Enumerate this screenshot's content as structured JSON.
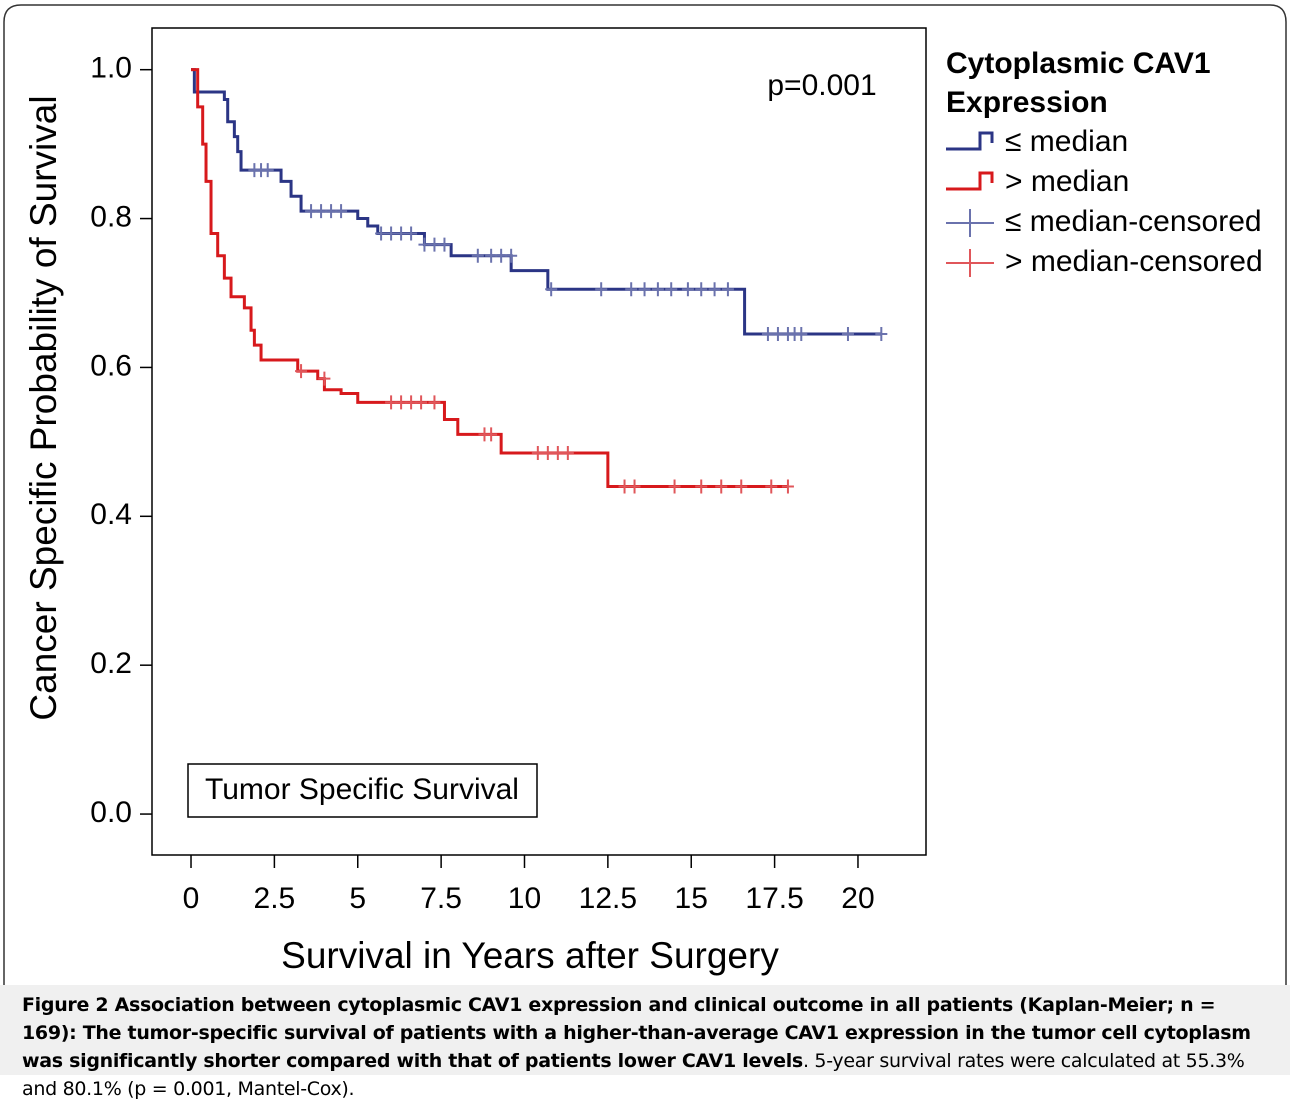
{
  "chart_data": {
    "type": "kaplan-meier",
    "xlabel": "Survival in Years after Surgery",
    "ylabel": "Cancer Specific Probability of Survival",
    "annotation": "p=0.001",
    "boxed_label": "Tumor Specific Survival",
    "legend_title": "Cytoplasmic CAV1 Expression",
    "xlim": [
      -1.17,
      22.04
    ],
    "ylim": [
      -0.055,
      1.056
    ],
    "xticks": [
      0,
      2.5,
      5,
      7.5,
      10,
      12.5,
      15,
      17.5,
      20
    ],
    "yticks": [
      {
        "value": 0,
        "label": "0.0"
      },
      0.2,
      0.4,
      0.6,
      0.8,
      {
        "value": 1,
        "label": "1.0"
      }
    ],
    "series": [
      {
        "name": "≤ median",
        "kind": "step",
        "color": "#2b3585",
        "x": [
          0,
          0.1,
          1.0,
          1.1,
          1.3,
          1.4,
          1.5,
          2.7,
          3.0,
          3.3,
          5.0,
          5.3,
          5.6,
          7.0,
          7.8,
          9.6,
          10.7,
          16.6,
          20.7
        ],
        "values": [
          1.0,
          0.97,
          0.96,
          0.93,
          0.91,
          0.89,
          0.865,
          0.85,
          0.83,
          0.81,
          0.8,
          0.79,
          0.78,
          0.765,
          0.75,
          0.73,
          0.705,
          0.645,
          0.645
        ]
      },
      {
        "name": "> median",
        "kind": "step",
        "color": "#d7191c",
        "x": [
          0,
          0.2,
          0.35,
          0.45,
          0.6,
          0.8,
          1.0,
          1.2,
          1.6,
          1.8,
          1.9,
          2.1,
          3.2,
          3.8,
          4.0,
          4.5,
          5.0,
          7.6,
          8.0,
          9.3,
          12.5,
          17.9
        ],
        "values": [
          1.0,
          0.95,
          0.9,
          0.85,
          0.78,
          0.75,
          0.72,
          0.695,
          0.68,
          0.65,
          0.63,
          0.61,
          0.595,
          0.585,
          0.57,
          0.565,
          0.553,
          0.53,
          0.51,
          0.485,
          0.44,
          0.44
        ]
      },
      {
        "name": "≤ median-censored",
        "kind": "censored",
        "color": "#6a72ad",
        "x": [
          1.9,
          2.1,
          2.3,
          3.6,
          3.9,
          4.2,
          4.5,
          5.7,
          6.0,
          6.3,
          6.6,
          7.0,
          7.3,
          7.6,
          8.6,
          9.0,
          9.3,
          9.6,
          10.8,
          12.3,
          13.2,
          13.6,
          14.0,
          14.4,
          14.9,
          15.3,
          15.7,
          16.1,
          17.3,
          17.6,
          17.9,
          18.1,
          18.3,
          19.7,
          20.7
        ],
        "values": [
          0.865,
          0.865,
          0.865,
          0.81,
          0.81,
          0.81,
          0.81,
          0.78,
          0.78,
          0.78,
          0.78,
          0.765,
          0.765,
          0.765,
          0.75,
          0.75,
          0.75,
          0.75,
          0.705,
          0.705,
          0.705,
          0.705,
          0.705,
          0.705,
          0.705,
          0.705,
          0.705,
          0.705,
          0.645,
          0.645,
          0.645,
          0.645,
          0.645,
          0.645,
          0.645
        ]
      },
      {
        "name": "> median-censored",
        "kind": "censored",
        "color": "#e0565a",
        "x": [
          3.3,
          4.0,
          6.0,
          6.3,
          6.6,
          6.9,
          7.3,
          8.8,
          9.0,
          10.4,
          10.7,
          11.0,
          11.3,
          13.0,
          13.3,
          14.5,
          15.3,
          15.9,
          16.5,
          17.4,
          17.9
        ],
        "values": [
          0.595,
          0.585,
          0.553,
          0.553,
          0.553,
          0.553,
          0.553,
          0.51,
          0.51,
          0.485,
          0.485,
          0.485,
          0.485,
          0.44,
          0.44,
          0.44,
          0.44,
          0.44,
          0.44,
          0.44,
          0.44
        ]
      }
    ]
  },
  "caption": {
    "bold": "Figure 2 Association between cytoplasmic CAV1 expression and clinical outcome in all patients (Kaplan-Meier; n = 169): The tumor-specific survival of patients with a higher-than-average CAV1 expression in the tumor cell cytoplasm was significantly shorter compared with that of patients lower CAV1 levels",
    "normal": ". 5-year survival rates were calculated at 55.3% and 80.1% (p = 0.001, Mantel-Cox)."
  }
}
